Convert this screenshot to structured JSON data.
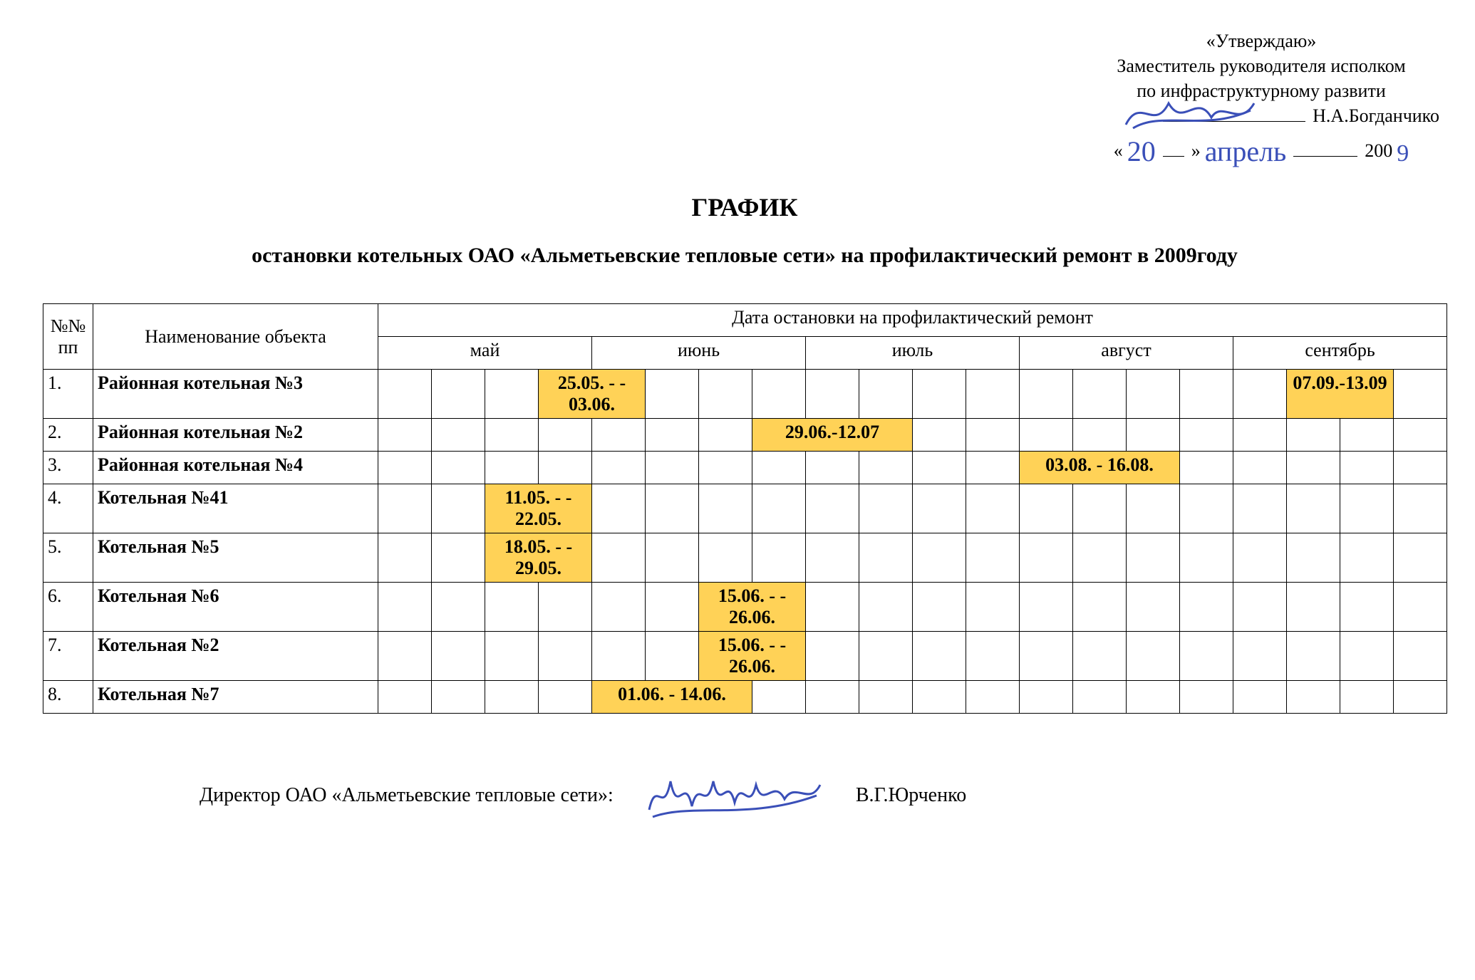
{
  "approval": {
    "line1": "«Утверждаю»",
    "line2": "Заместитель руководителя исполком",
    "line3": "по инфраструктурному развити",
    "name_line_prefix": "",
    "name": "Н.А.Богданчико",
    "date_day": "20",
    "date_month": "апрель",
    "date_year_prefix": "200",
    "date_year_last": "9"
  },
  "title": {
    "line1": "ГРАФИК",
    "line2": "остановки котельных ОАО «Альметьевские тепловые сети» на профилактический ремонт в 2009году"
  },
  "columns": {
    "num": "№№\nпп",
    "name": "Наименование объекта",
    "date_header": "Дата остановки на профилактический ремонт",
    "months": [
      "май",
      "июнь",
      "июль",
      "август",
      "сентябрь"
    ]
  },
  "highlight_color": "#ffd257",
  "rows": [
    {
      "num": "1.",
      "name": "Районная котельная №3",
      "bars": [
        {
          "start": 3,
          "span": 2,
          "label": "25.05.  - - 03.06."
        },
        {
          "start": 17,
          "span": 2,
          "label": "07.09.-13.09"
        }
      ]
    },
    {
      "num": "2.",
      "name": "Районная котельная №2",
      "bars": [
        {
          "start": 7,
          "span": 3,
          "label": "29.06.-12.07"
        }
      ]
    },
    {
      "num": "3.",
      "name": "Районная котельная №4",
      "bars": [
        {
          "start": 12,
          "span": 3,
          "label": "03.08.  -  16.08."
        }
      ]
    },
    {
      "num": "4.",
      "name": "Котельная №41",
      "bars": [
        {
          "start": 2,
          "span": 2,
          "label": "11.05. - - 22.05."
        }
      ]
    },
    {
      "num": "5.",
      "name": "Котельная №5",
      "bars": [
        {
          "start": 2,
          "span": 2,
          "label": "18.05. - - 29.05."
        }
      ]
    },
    {
      "num": "6.",
      "name": "Котельная №6",
      "bars": [
        {
          "start": 6,
          "span": 2,
          "label": "15.06. - - 26.06."
        }
      ]
    },
    {
      "num": "7.",
      "name": "Котельная №2",
      "bars": [
        {
          "start": 6,
          "span": 2,
          "label": "15.06. - - 26.06."
        }
      ]
    },
    {
      "num": "8.",
      "name": "Котельная №7",
      "bars": [
        {
          "start": 4,
          "span": 3,
          "label": "01.06. - 14.06."
        }
      ]
    }
  ],
  "weeks_per_month": 4,
  "footer": {
    "role": "Директор ОАО «Альметьевские тепловые сети»:",
    "name": "В.Г.Юрченко"
  },
  "signature_stroke": "#3a4fb8"
}
